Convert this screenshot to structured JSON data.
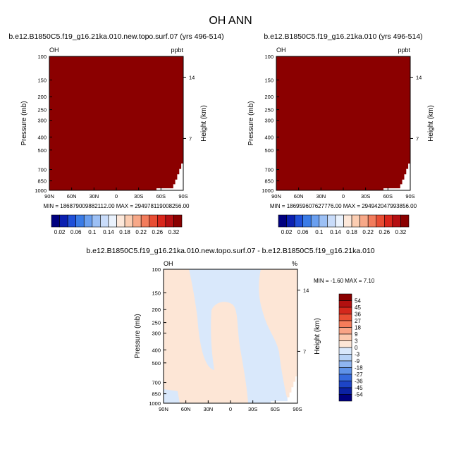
{
  "figure_title": "OH ANN",
  "chart_data": [
    {
      "type": "heatmap",
      "id": "left",
      "title": "b.e12.B1850C5.f19_g16.21ka.010.new.topo.surf.07 (yrs 496-514)",
      "left_label": "OH",
      "right_label": "ppbt",
      "ylabel": "Pressure (mb)",
      "right_axis_label": "Height (km)",
      "y_scale": "log",
      "ylim": [
        1000,
        100
      ],
      "y_ticks": [
        100,
        150,
        200,
        250,
        300,
        400,
        500,
        700,
        850,
        1000
      ],
      "x_ticks": [
        "90N",
        "60N",
        "30N",
        "0",
        "30S",
        "60S",
        "90S"
      ],
      "height_ticks": [
        {
          "km": "14",
          "p": 143
        },
        {
          "km": "7",
          "p": 410
        }
      ],
      "field_color_value": ">0.32",
      "stats": "MIN = 186879009882112.00   MAX = 294978119008256.00"
    },
    {
      "type": "heatmap",
      "id": "right",
      "title": "b.e12.B1850C5.f19_g16.21ka.010 (yrs 496-514)",
      "left_label": "OH",
      "right_label": "ppbt",
      "ylabel": "Pressure (mb)",
      "right_axis_label": "Height (km)",
      "y_scale": "log",
      "ylim": [
        1000,
        100
      ],
      "y_ticks": [
        100,
        150,
        200,
        250,
        300,
        400,
        500,
        700,
        850,
        1000
      ],
      "x_ticks": [
        "90N",
        "60N",
        "30N",
        "0",
        "30S",
        "60S",
        "90S"
      ],
      "height_ticks": [
        {
          "km": "14",
          "p": 143
        },
        {
          "km": "7",
          "p": 410
        }
      ],
      "field_color_value": ">0.32",
      "stats": "MIN = 186959607627776.00   MAX = 294942047993856.00"
    },
    {
      "type": "heatmap",
      "id": "diff",
      "title": "b.e12.B1850C5.f19_g16.21ka.010.new.topo.surf.07 - b.e12.B1850C5.f19_g16.21ka.010",
      "left_label": "OH",
      "right_label": "%",
      "ylabel": "Pressure (mb)",
      "right_axis_label": "Height (km)",
      "y_scale": "log",
      "ylim": [
        1000,
        100
      ],
      "y_ticks": [
        100,
        150,
        200,
        250,
        300,
        400,
        500,
        700,
        850,
        1000
      ],
      "x_ticks": [
        "90N",
        "60N",
        "30N",
        "0",
        "30S",
        "60S",
        "90S"
      ],
      "height_ticks": [
        {
          "km": "14",
          "p": 143
        },
        {
          "km": "7",
          "p": 410
        }
      ],
      "stats": "MIN =  -1.60   MAX =   7.10"
    }
  ],
  "colorbar_top": {
    "labels": [
      "0.02",
      "0.06",
      "0.1",
      "0.14",
      "0.18",
      "0.22",
      "0.26",
      "0.32"
    ],
    "colors": [
      "#00007f",
      "#0a1fb0",
      "#1f4fd8",
      "#3a7be6",
      "#6a9fef",
      "#9cc0f5",
      "#c9dcfa",
      "#eaf2fd",
      "#fde8da",
      "#fbcdb2",
      "#f7a888",
      "#f27c5c",
      "#e84d33",
      "#d9261b",
      "#b50f12",
      "#8a0000"
    ]
  },
  "colorbar_diff": {
    "labels": [
      "54",
      "45",
      "36",
      "27",
      "18",
      "9",
      "3",
      "0",
      "-3",
      "-9",
      "-18",
      "-27",
      "-36",
      "-45",
      "-54"
    ],
    "colors": [
      "#8a0000",
      "#b2100f",
      "#d4281c",
      "#e94f33",
      "#f57c5a",
      "#f9a486",
      "#fcc9ae",
      "#fde6d6",
      "#d9e8fb",
      "#b7d2f6",
      "#8fb5f0",
      "#5f92e8",
      "#3569dd",
      "#1d44c6",
      "#0b21a3",
      "#00007f"
    ]
  },
  "colors": {
    "field": "#8b0000",
    "diff_positive": "#fde6d6",
    "diff_negative": "#d9e8fb"
  }
}
